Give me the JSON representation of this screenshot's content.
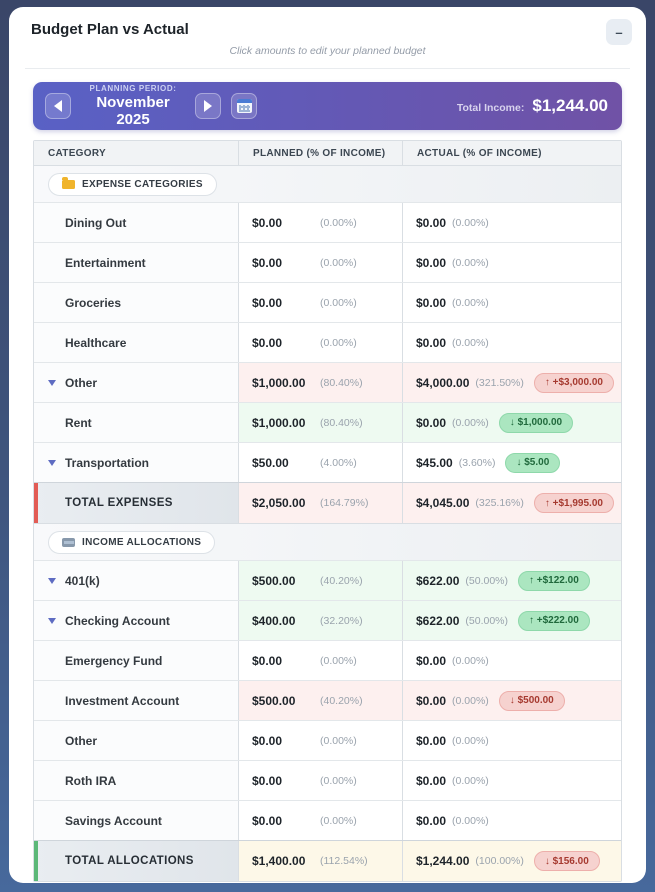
{
  "window": {
    "title": "Budget Plan vs Actual",
    "subtitle": "Click amounts to edit your planned budget",
    "minimize_glyph": "–"
  },
  "banner": {
    "period_label": "PLANNING PERIOD:",
    "period_value": "November 2025",
    "total_income_label": "Total Income:",
    "total_income_value": "$1,244.00"
  },
  "table": {
    "headers": [
      "CATEGORY",
      "PLANNED (% OF INCOME)",
      "ACTUAL (% OF INCOME)"
    ],
    "sections": [
      {
        "label": "EXPENSE CATEGORIES",
        "icon": "folder-icon",
        "rows": [
          {
            "name": "Dining Out",
            "expander": false,
            "planned": {
              "amount": "$0.00",
              "pct": "(0.00%)",
              "tint": "none"
            },
            "actual": {
              "amount": "$0.00",
              "pct": "(0.00%)",
              "tint": "none",
              "badge": null
            }
          },
          {
            "name": "Entertainment",
            "expander": false,
            "planned": {
              "amount": "$0.00",
              "pct": "(0.00%)",
              "tint": "none"
            },
            "actual": {
              "amount": "$0.00",
              "pct": "(0.00%)",
              "tint": "none",
              "badge": null
            }
          },
          {
            "name": "Groceries",
            "expander": false,
            "planned": {
              "amount": "$0.00",
              "pct": "(0.00%)",
              "tint": "none"
            },
            "actual": {
              "amount": "$0.00",
              "pct": "(0.00%)",
              "tint": "none",
              "badge": null
            }
          },
          {
            "name": "Healthcare",
            "expander": false,
            "planned": {
              "amount": "$0.00",
              "pct": "(0.00%)",
              "tint": "none"
            },
            "actual": {
              "amount": "$0.00",
              "pct": "(0.00%)",
              "tint": "none",
              "badge": null
            }
          },
          {
            "name": "Other",
            "expander": true,
            "planned": {
              "amount": "$1,000.00",
              "pct": "(80.40%)",
              "tint": "red"
            },
            "actual": {
              "amount": "$4,000.00",
              "pct": "(321.50%)",
              "tint": "red",
              "badge": {
                "arrow": "↑",
                "text": "+$3,000.00",
                "type": "red"
              }
            }
          },
          {
            "name": "Rent",
            "expander": false,
            "planned": {
              "amount": "$1,000.00",
              "pct": "(80.40%)",
              "tint": "green"
            },
            "actual": {
              "amount": "$0.00",
              "pct": "(0.00%)",
              "tint": "green",
              "badge": {
                "arrow": "↓",
                "text": "$1,000.00",
                "type": "green"
              }
            }
          },
          {
            "name": "Transportation",
            "expander": true,
            "planned": {
              "amount": "$50.00",
              "pct": "(4.00%)",
              "tint": "none"
            },
            "actual": {
              "amount": "$45.00",
              "pct": "(3.60%)",
              "tint": "none",
              "badge": {
                "arrow": "↓",
                "text": "$5.00",
                "type": "green"
              }
            }
          }
        ],
        "total": {
          "name": "TOTAL EXPENSES",
          "accent": "red",
          "planned": {
            "amount": "$2,050.00",
            "pct": "(164.79%)",
            "tint": "red"
          },
          "actual": {
            "amount": "$4,045.00",
            "pct": "(325.16%)",
            "tint": "red",
            "badge": {
              "arrow": "↑",
              "text": "+$1,995.00",
              "type": "red"
            }
          }
        }
      },
      {
        "label": "INCOME ALLOCATIONS",
        "icon": "card-icon",
        "rows": [
          {
            "name": "401(k)",
            "expander": true,
            "planned": {
              "amount": "$500.00",
              "pct": "(40.20%)",
              "tint": "green"
            },
            "actual": {
              "amount": "$622.00",
              "pct": "(50.00%)",
              "tint": "green",
              "badge": {
                "arrow": "↑",
                "text": "+$122.00",
                "type": "green"
              }
            }
          },
          {
            "name": "Checking Account",
            "expander": true,
            "planned": {
              "amount": "$400.00",
              "pct": "(32.20%)",
              "tint": "green"
            },
            "actual": {
              "amount": "$622.00",
              "pct": "(50.00%)",
              "tint": "green",
              "badge": {
                "arrow": "↑",
                "text": "+$222.00",
                "type": "green"
              }
            }
          },
          {
            "name": "Emergency Fund",
            "expander": false,
            "planned": {
              "amount": "$0.00",
              "pct": "(0.00%)",
              "tint": "none"
            },
            "actual": {
              "amount": "$0.00",
              "pct": "(0.00%)",
              "tint": "none",
              "badge": null
            }
          },
          {
            "name": "Investment Account",
            "expander": false,
            "planned": {
              "amount": "$500.00",
              "pct": "(40.20%)",
              "tint": "red"
            },
            "actual": {
              "amount": "$0.00",
              "pct": "(0.00%)",
              "tint": "red",
              "badge": {
                "arrow": "↓",
                "text": "$500.00",
                "type": "red"
              }
            }
          },
          {
            "name": "Other",
            "expander": false,
            "planned": {
              "amount": "$0.00",
              "pct": "(0.00%)",
              "tint": "none"
            },
            "actual": {
              "amount": "$0.00",
              "pct": "(0.00%)",
              "tint": "none",
              "badge": null
            }
          },
          {
            "name": "Roth IRA",
            "expander": false,
            "planned": {
              "amount": "$0.00",
              "pct": "(0.00%)",
              "tint": "none"
            },
            "actual": {
              "amount": "$0.00",
              "pct": "(0.00%)",
              "tint": "none",
              "badge": null
            }
          },
          {
            "name": "Savings Account",
            "expander": false,
            "planned": {
              "amount": "$0.00",
              "pct": "(0.00%)",
              "tint": "none"
            },
            "actual": {
              "amount": "$0.00",
              "pct": "(0.00%)",
              "tint": "none",
              "badge": null
            }
          }
        ],
        "total": {
          "name": "TOTAL ALLOCATIONS",
          "accent": "green",
          "planned": {
            "amount": "$1,400.00",
            "pct": "(112.54%)",
            "tint": "yellow"
          },
          "actual": {
            "amount": "$1,244.00",
            "pct": "(100.00%)",
            "tint": "yellow",
            "badge": {
              "arrow": "↓",
              "text": "$156.00",
              "type": "red"
            }
          }
        }
      }
    ]
  },
  "colors": {
    "banner_gradient_start": "#5961c5",
    "banner_gradient_end": "#7052a6",
    "tint_red": "#fdf0ef",
    "tint_green": "#eefaf1",
    "tint_yellow": "#fdf8e8",
    "badge_red_bg": "#f6d2cf",
    "badge_red_text": "#a63a30",
    "badge_green_bg": "#abe6c0",
    "badge_green_text": "#20693c",
    "accent_red": "#e25c55",
    "accent_green": "#5cb878",
    "folder_icon": "#f0b42c"
  }
}
